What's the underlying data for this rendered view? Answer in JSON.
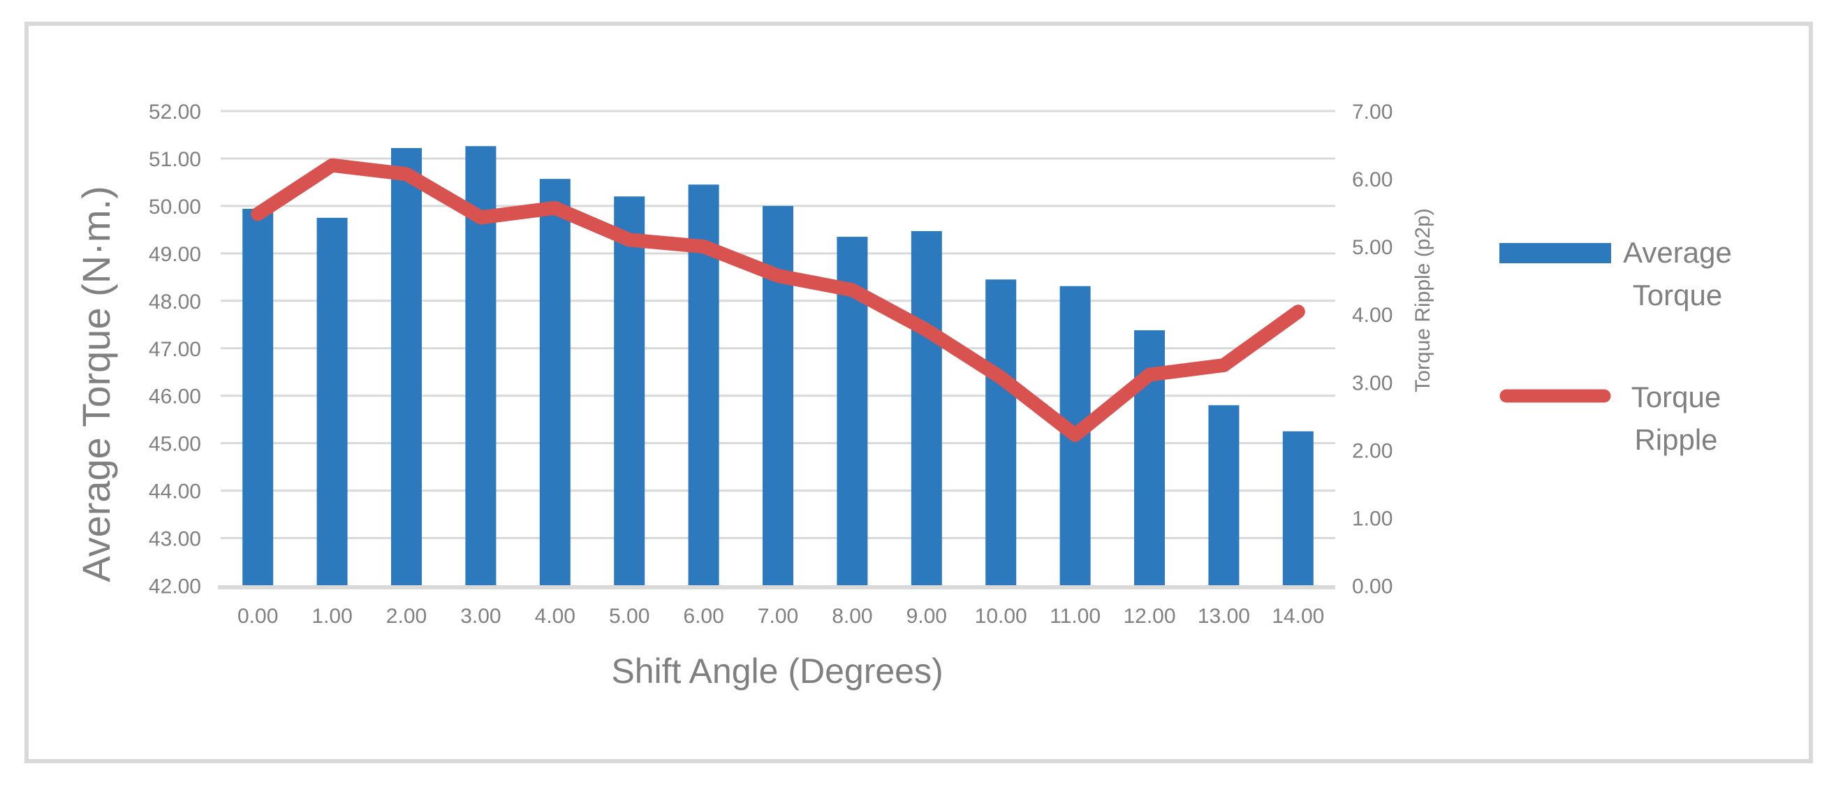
{
  "chart_data": {
    "type": "bar",
    "subtype": "combo-bar-line-dual-axis",
    "title": "",
    "xlabel": "Shift Angle (Degrees)",
    "ylabel_left": "Average Torque (N·m.)",
    "ylabel_right": "Torque Ripple (p2p)",
    "categories": [
      "0.00",
      "1.00",
      "2.00",
      "3.00",
      "4.00",
      "5.00",
      "6.00",
      "7.00",
      "8.00",
      "9.00",
      "10.00",
      "11.00",
      "12.00",
      "13.00",
      "14.00"
    ],
    "series": [
      {
        "name": "Average Torque",
        "type": "bar",
        "axis": "left",
        "color": "#2C7ABD",
        "values": [
          49.94,
          49.75,
          51.22,
          51.26,
          50.57,
          50.2,
          50.45,
          50.0,
          49.35,
          49.47,
          48.45,
          48.31,
          47.38,
          45.8,
          45.25
        ]
      },
      {
        "name": "Torque Ripple",
        "type": "line",
        "axis": "right",
        "color": "#D8534F",
        "values": [
          5.48,
          6.2,
          6.07,
          5.43,
          5.57,
          5.1,
          5.0,
          4.57,
          4.36,
          3.77,
          3.07,
          2.22,
          3.11,
          3.25,
          4.04
        ]
      }
    ],
    "left_axis": {
      "min": 42,
      "max": 52,
      "step": 1,
      "tick_labels": [
        "42.00",
        "43.00",
        "44.00",
        "45.00",
        "46.00",
        "47.00",
        "48.00",
        "49.00",
        "50.00",
        "51.00",
        "52.00"
      ]
    },
    "right_axis": {
      "min": 0,
      "max": 7,
      "step": 1,
      "tick_labels": [
        "0.00",
        "1.00",
        "2.00",
        "3.00",
        "4.00",
        "5.00",
        "6.00",
        "7.00"
      ]
    },
    "grid": true,
    "legend_position": "right"
  },
  "legend": {
    "items": [
      {
        "label_line1": "Average",
        "label_line2": "Torque",
        "swatch": "bar",
        "color": "#2C7ABD"
      },
      {
        "label_line1": "Torque",
        "label_line2": "Ripple",
        "swatch": "line",
        "color": "#D8534F"
      }
    ]
  },
  "colors": {
    "bar": "#2C7ABD",
    "line": "#D8534F",
    "gridline": "#D9D9D9",
    "border": "#D9D9D9",
    "text": "#808080"
  }
}
